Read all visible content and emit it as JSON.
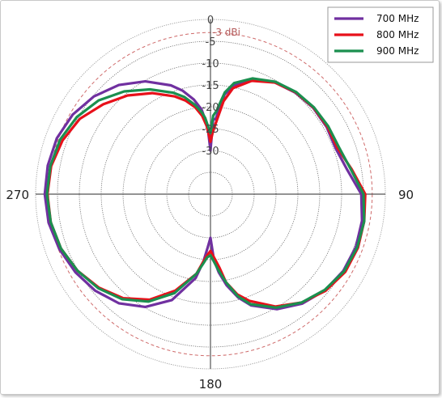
{
  "chart_data": {
    "type": "polar",
    "title": "",
    "radial_unit": "dBi",
    "r_ticks": [
      0,
      -5,
      -10,
      -15,
      -20,
      -25,
      -30
    ],
    "r_tick_labels": [
      "0",
      "-5",
      "-10",
      "-15",
      "-20",
      "-25",
      "-30"
    ],
    "r_range": [
      -40,
      0
    ],
    "reference_ring": {
      "value": -3,
      "label": "-3 dBi",
      "color": "#cf6b6b"
    },
    "angle_labels": [
      {
        "angle": 90,
        "label": "90"
      },
      {
        "angle": 180,
        "label": "180"
      },
      {
        "angle": 270,
        "label": "270"
      }
    ],
    "legend_position": "top-right",
    "series": [
      {
        "name": "700 MHz",
        "color": "#7030a0",
        "points": [
          [
            0,
            -30
          ],
          [
            2,
            -23
          ],
          [
            4,
            -22.7
          ],
          [
            8,
            -17
          ],
          [
            12,
            -14.5
          ],
          [
            20,
            -12
          ],
          [
            30,
            -10.5
          ],
          [
            40,
            -9.7
          ],
          [
            50,
            -9.3
          ],
          [
            60,
            -9.3
          ],
          [
            70,
            -9.5
          ],
          [
            80,
            -8.2
          ],
          [
            90,
            -5.5
          ],
          [
            100,
            -4.8
          ],
          [
            110,
            -4.6
          ],
          [
            120,
            -4.9
          ],
          [
            130,
            -5.8
          ],
          [
            140,
            -7.3
          ],
          [
            150,
            -9.6
          ],
          [
            160,
            -12.9
          ],
          [
            165,
            -15.5
          ],
          [
            170,
            -18.8
          ],
          [
            174,
            -22
          ],
          [
            177,
            -25
          ],
          [
            180,
            -30
          ],
          [
            183,
            -27.8
          ],
          [
            186,
            -24.5
          ],
          [
            190,
            -20.5
          ],
          [
            200,
            -14.2
          ],
          [
            210,
            -10.2
          ],
          [
            220,
            -7.4
          ],
          [
            230,
            -5.6
          ],
          [
            240,
            -4.3
          ],
          [
            250,
            -3.2
          ],
          [
            260,
            -2.4
          ],
          [
            270,
            -2.1
          ],
          [
            280,
            -2.2
          ],
          [
            290,
            -2.6
          ],
          [
            300,
            -3.6
          ],
          [
            310,
            -5.2
          ],
          [
            320,
            -7.4
          ],
          [
            330,
            -10.2
          ],
          [
            340,
            -13.5
          ],
          [
            345,
            -15.5
          ],
          [
            350,
            -18
          ],
          [
            354,
            -20.5
          ],
          [
            356,
            -23
          ],
          [
            358,
            -26
          ],
          [
            360,
            -30
          ]
        ]
      },
      {
        "name": "800 MHz",
        "color": "#e8101a",
        "points": [
          [
            0,
            -28
          ],
          [
            2,
            -26
          ],
          [
            4,
            -24
          ],
          [
            8,
            -18.5
          ],
          [
            12,
            -15.2
          ],
          [
            20,
            -12.4
          ],
          [
            30,
            -10.5
          ],
          [
            40,
            -9.6
          ],
          [
            50,
            -9.2
          ],
          [
            60,
            -9.1
          ],
          [
            70,
            -9.1
          ],
          [
            80,
            -7.2
          ],
          [
            90,
            -4.6
          ],
          [
            100,
            -4.3
          ],
          [
            110,
            -4.1
          ],
          [
            120,
            -4.4
          ],
          [
            130,
            -5.6
          ],
          [
            140,
            -7.6
          ],
          [
            150,
            -10.3
          ],
          [
            160,
            -14
          ],
          [
            165,
            -16.2
          ],
          [
            170,
            -19.5
          ],
          [
            173,
            -23
          ],
          [
            176,
            -25
          ],
          [
            180,
            -27
          ],
          [
            183,
            -26
          ],
          [
            186,
            -24.5
          ],
          [
            190,
            -21.5
          ],
          [
            200,
            -16.5
          ],
          [
            210,
            -12.1
          ],
          [
            220,
            -8.9
          ],
          [
            230,
            -6.7
          ],
          [
            240,
            -4.9
          ],
          [
            250,
            -3.6
          ],
          [
            260,
            -2.9
          ],
          [
            270,
            -2.7
          ],
          [
            280,
            -3
          ],
          [
            290,
            -4
          ],
          [
            300,
            -5.5
          ],
          [
            310,
            -8
          ],
          [
            320,
            -10.5
          ],
          [
            330,
            -13.3
          ],
          [
            340,
            -16.2
          ],
          [
            345,
            -17.8
          ],
          [
            350,
            -19.8
          ],
          [
            354,
            -22
          ],
          [
            357,
            -24.5
          ],
          [
            360,
            -28
          ]
        ]
      },
      {
        "name": "900 MHz",
        "color": "#1b8f4f",
        "points": [
          [
            0,
            -26
          ],
          [
            2,
            -22
          ],
          [
            4,
            -21
          ],
          [
            8,
            -16.5
          ],
          [
            12,
            -14
          ],
          [
            20,
            -11.8
          ],
          [
            30,
            -10.3
          ],
          [
            40,
            -9.5
          ],
          [
            50,
            -9.1
          ],
          [
            60,
            -8.9
          ],
          [
            70,
            -8.7
          ],
          [
            80,
            -7.4
          ],
          [
            90,
            -5
          ],
          [
            100,
            -4.3
          ],
          [
            110,
            -4.3
          ],
          [
            120,
            -4.7
          ],
          [
            130,
            -5.9
          ],
          [
            140,
            -7.6
          ],
          [
            150,
            -10
          ],
          [
            160,
            -13.2
          ],
          [
            165,
            -15.8
          ],
          [
            170,
            -19.5
          ],
          [
            174,
            -22.5
          ],
          [
            177,
            -24.5
          ],
          [
            180,
            -26
          ],
          [
            183,
            -25.5
          ],
          [
            186,
            -24
          ],
          [
            190,
            -21.5
          ],
          [
            200,
            -15.9
          ],
          [
            210,
            -11.6
          ],
          [
            220,
            -8.6
          ],
          [
            230,
            -6.5
          ],
          [
            240,
            -4.9
          ],
          [
            250,
            -3.6
          ],
          [
            260,
            -2.9
          ],
          [
            270,
            -2.6
          ],
          [
            280,
            -2.8
          ],
          [
            290,
            -3.4
          ],
          [
            300,
            -4.7
          ],
          [
            310,
            -6.6
          ],
          [
            320,
            -9.3
          ],
          [
            330,
            -12.3
          ],
          [
            340,
            -15.3
          ],
          [
            345,
            -17
          ],
          [
            350,
            -19.2
          ],
          [
            354,
            -21.2
          ],
          [
            356,
            -22.5
          ],
          [
            358,
            -24.5
          ],
          [
            360,
            -26
          ]
        ]
      }
    ]
  }
}
